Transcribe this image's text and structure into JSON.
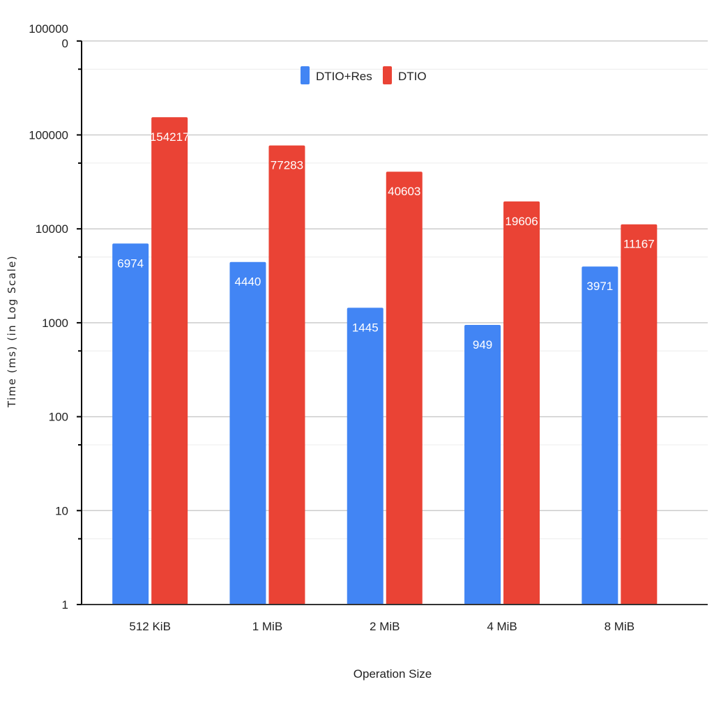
{
  "chart_data": {
    "type": "bar",
    "categories": [
      "512 KiB",
      "1 MiB",
      "2 MiB",
      "4 MiB",
      "8 MiB"
    ],
    "series": [
      {
        "name": "DTIO+Res",
        "values": [
          6974,
          4440,
          1445,
          949,
          3971
        ],
        "color": "#4285f4"
      },
      {
        "name": "DTIO",
        "values": [
          154217,
          77283,
          40603,
          19606,
          11167
        ],
        "color": "#ea4335"
      }
    ],
    "xlabel": "Operation Size",
    "ylabel": "Time (ms) (in Log Scale)",
    "yscale": "log",
    "ylim": [
      1,
      1000000
    ],
    "yticks": [
      {
        "value": 1,
        "label": "1"
      },
      {
        "value": 10,
        "label": "10"
      },
      {
        "value": 100,
        "label": "100"
      },
      {
        "value": 1000,
        "label": "1000"
      },
      {
        "value": 10000,
        "label": "10000"
      },
      {
        "value": 100000,
        "label": "100000"
      },
      {
        "value": 1000000,
        "label": "1000000"
      }
    ],
    "grid": true,
    "legend_position": "top-center",
    "data_labels": true
  }
}
